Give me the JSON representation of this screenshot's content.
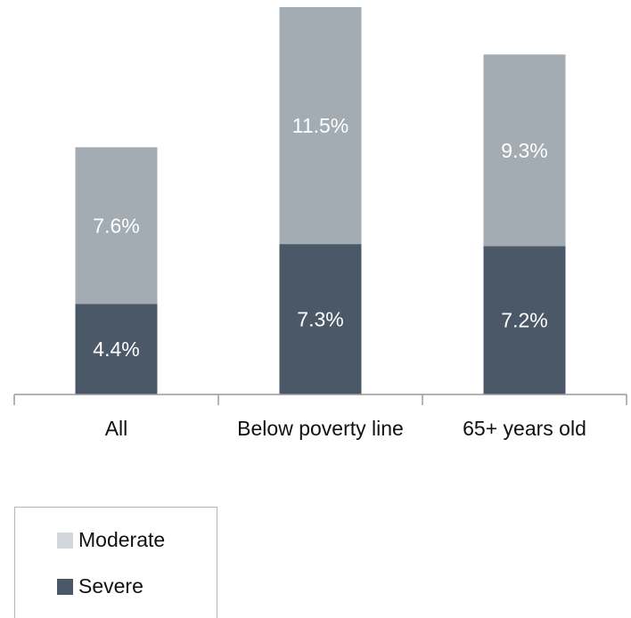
{
  "chart_data": {
    "type": "bar",
    "stacked": true,
    "categories": [
      "All",
      "Below poverty line",
      "65+ years old"
    ],
    "series": [
      {
        "name": "Severe",
        "values": [
          4.4,
          7.3,
          7.2
        ],
        "labels": [
          "4.4%",
          "7.3%",
          "7.2%"
        ],
        "color": "#4a5868"
      },
      {
        "name": "Moderate",
        "values": [
          7.6,
          11.5,
          9.3
        ],
        "labels": [
          "7.6%",
          "11.5%",
          "9.3%"
        ],
        "color": "#a3abb3"
      }
    ],
    "ylim": [
      0,
      18.8
    ],
    "grid": false,
    "legend_position": "bottom-left"
  },
  "legend": {
    "items": [
      {
        "label": "Moderate",
        "color": "#d2d6da"
      },
      {
        "label": "Severe",
        "color": "#4a5868"
      }
    ]
  }
}
